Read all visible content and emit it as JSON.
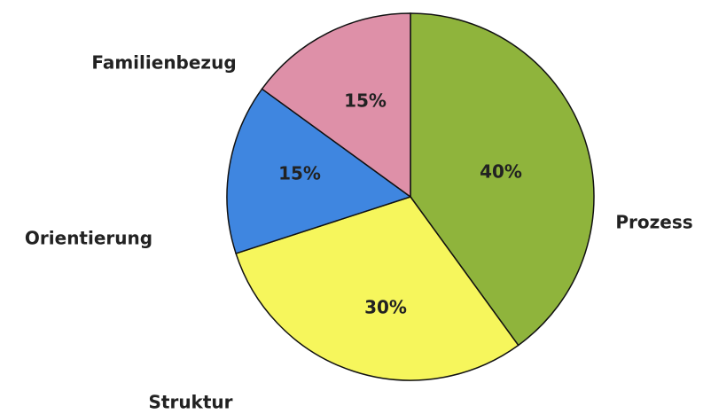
{
  "chart_data": {
    "type": "pie",
    "categories": [
      "Prozess",
      "Struktur",
      "Orientierung",
      "Familienbezug"
    ],
    "values": [
      40,
      30,
      15,
      15
    ],
    "value_labels": [
      "40%",
      "30%",
      "15%",
      "15%"
    ],
    "colors": [
      "#8fb43c",
      "#f6f65c",
      "#3f86e0",
      "#de90a8"
    ]
  }
}
